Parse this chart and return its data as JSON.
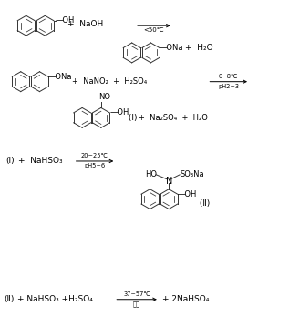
{
  "bg_color": "#ffffff",
  "line_color": "#333333",
  "lw": 0.7,
  "font_color": "#000000",
  "figsize": [
    3.17,
    3.47
  ],
  "dpi": 100,
  "reactions": {
    "r1_left_text": "+ NaOH",
    "r1_arrow_cond": "<50℃",
    "r1_right_sub": "—ONa",
    "r1_right_plus": "+ H₂O",
    "r2_left_sub": "—ONa",
    "r2_reagents": "+ NaNO₂  + H₂SO₄",
    "r2_arrow_top": "0～8℃",
    "r2_arrow_bot": "pH2～3",
    "r2_prod_no": "NO",
    "r2_prod_oh": "—OH",
    "r2_prod_I": "(Ⅰ)",
    "r2_prod_rest": "+ Na₂SO₄  + H₂O",
    "r3_left": "(Ⅰ)",
    "r3_reagent": "+ NaHSO₃",
    "r3_arrow_top": "20～25℃",
    "r3_arrow_bot": "pH5～6",
    "r3_HO": "HO",
    "r3_SO3Na": "SO₃Na",
    "r3_N": "N",
    "r3_OH": "—OH",
    "r3_II": "(Ⅱ)",
    "r4_left": "(Ⅱ)",
    "r4_reagents": "+ NaHSO₃ +H₂SO₄",
    "r4_arrow_top": "37～57℃",
    "r4_arrow_bot": "本品",
    "r4_right": "+ 2NaHSO₄"
  }
}
